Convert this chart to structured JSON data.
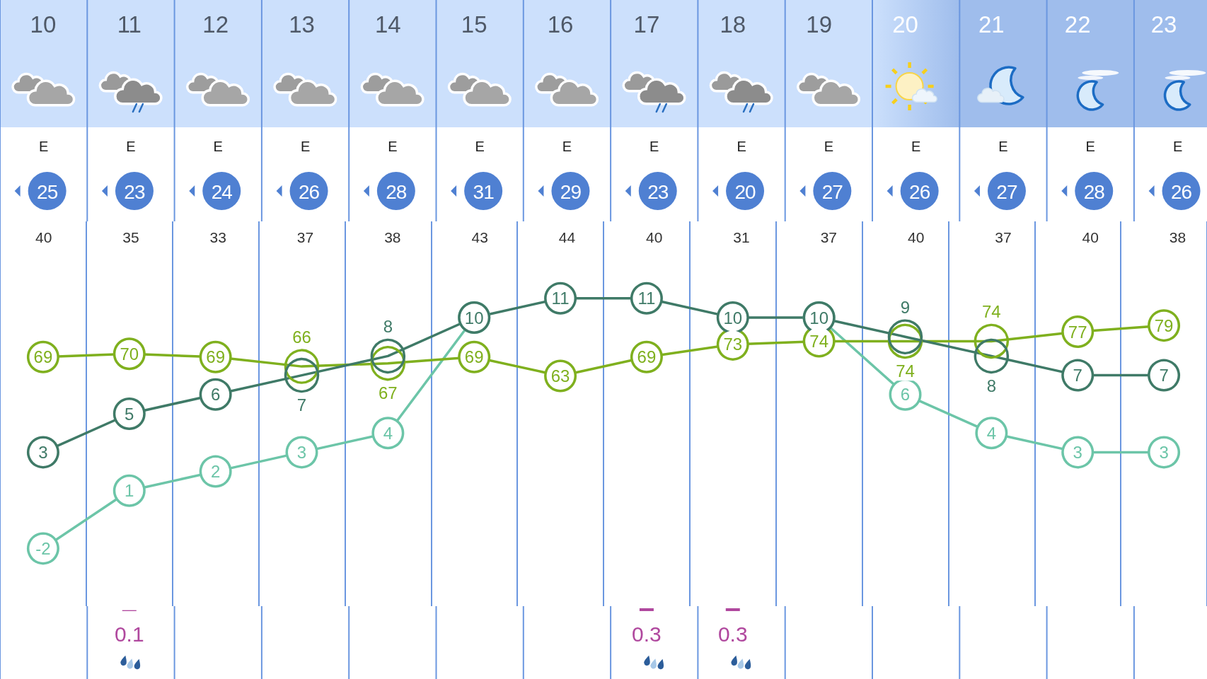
{
  "chart_data": [
    {
      "type": "line",
      "categories": [
        "10",
        "11",
        "12",
        "13",
        "14",
        "15",
        "16",
        "17",
        "18",
        "19",
        "20",
        "21",
        "22",
        "23"
      ],
      "series": [
        {
          "color": "#6cc5a8",
          "values": [
            -2,
            1,
            2,
            3,
            4,
            10,
            null,
            null,
            null,
            10,
            6,
            4,
            3,
            3
          ],
          "value_labels": [
            "-2",
            "1",
            "2",
            "3",
            "4",
            null,
            null,
            null,
            null,
            null,
            "6",
            "4",
            "3",
            "3"
          ]
        },
        {
          "color": "#7fb01e",
          "axis": "y2",
          "values": [
            69,
            70,
            69,
            66,
            67,
            69,
            63,
            69,
            73,
            74,
            74,
            74,
            77,
            79
          ]
        },
        {
          "color": "#3f7a67",
          "values": [
            3,
            5,
            6,
            7,
            8,
            10,
            11,
            11,
            10,
            10,
            9,
            8,
            7,
            7
          ]
        }
      ],
      "annotations": [
        "E",
        "E",
        "E",
        "E",
        "E",
        "E",
        "E",
        "E",
        "E",
        "E",
        "E",
        "E",
        "E",
        "E",
        "25",
        "23",
        "24",
        "26",
        "28",
        "31",
        "29",
        "23",
        "20",
        "27",
        "26",
        "27",
        "28",
        "26",
        "40",
        "35",
        "33",
        "37",
        "38",
        "43",
        "44",
        "40",
        "31",
        "37",
        "40",
        "37",
        "40",
        "38"
      ],
      "ylim": [
        -5,
        15
      ],
      "y2lim": [
        -10,
        112
      ],
      "tick_labels": "x",
      "grid": "x",
      "data_labels": true,
      "marker": "circle"
    },
    {
      "type": "bar",
      "categories": [
        "10",
        "11",
        "12",
        "13",
        "14",
        "15",
        "16",
        "17",
        "18",
        "19",
        "20",
        "21",
        "22",
        "23"
      ],
      "values": [
        null,
        0.1,
        null,
        null,
        null,
        null,
        null,
        0.3,
        0.3,
        null,
        null,
        null,
        null,
        null
      ],
      "color": "#b0489e",
      "tick_labels": false,
      "data_labels": true
    }
  ]
}
